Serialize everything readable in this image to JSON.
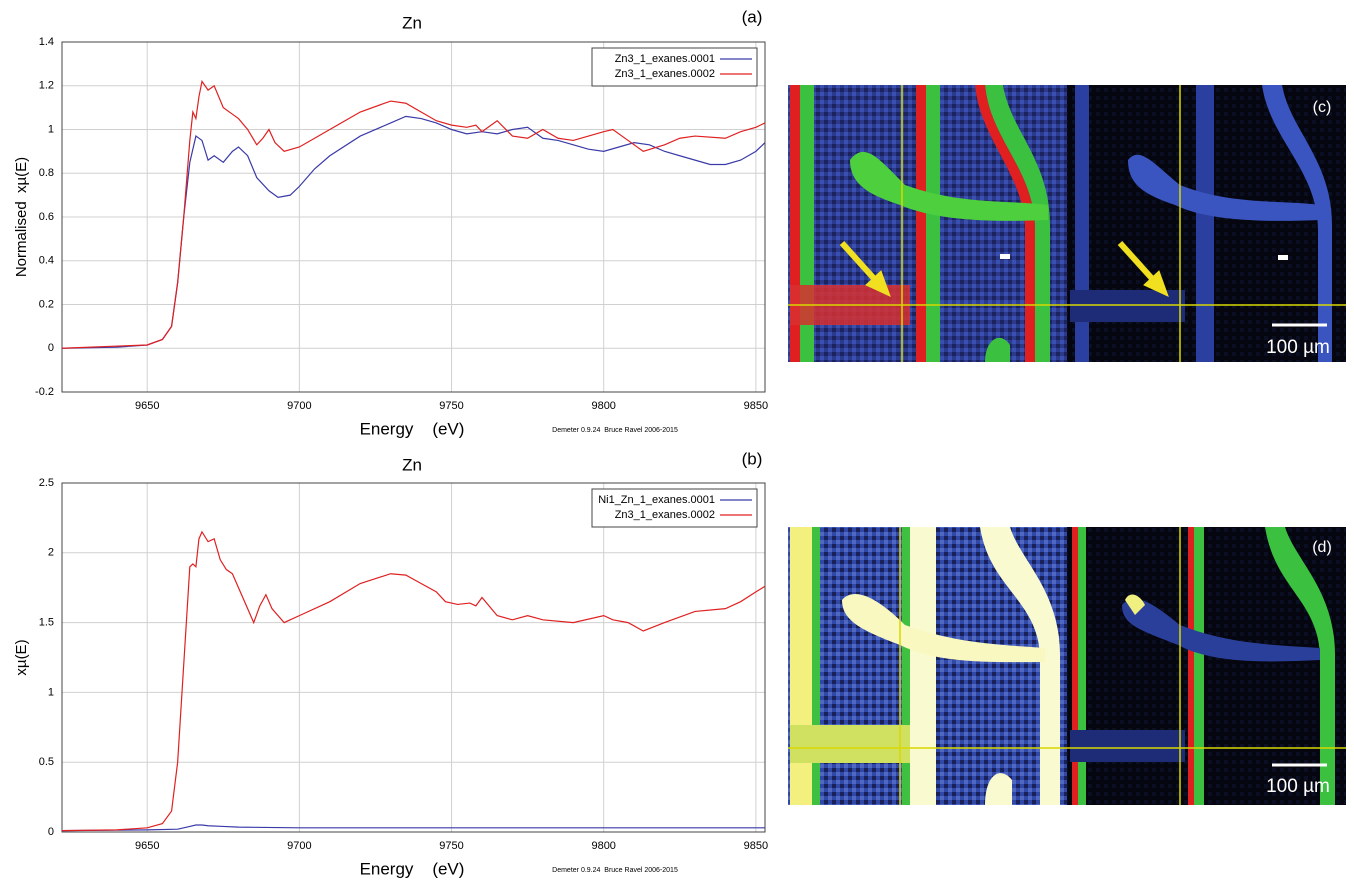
{
  "chart_data": [
    {
      "type": "line",
      "title": "Zn",
      "panel_label": "(a)",
      "x_label": "Energy    (eV)",
      "y_label": "Normalised  xµ(E)",
      "footer": "Demeter 0.9.24  Bruce Ravel 2006-2015",
      "xlim": [
        9622,
        9853
      ],
      "xticks": [
        9650,
        9700,
        9750,
        9800,
        9850
      ],
      "ylim": [
        -0.2,
        1.4
      ],
      "yticks": [
        -0.2,
        0,
        0.2,
        0.4,
        0.6,
        0.8,
        1,
        1.2,
        1.4
      ],
      "grid": true,
      "legend": "upper right",
      "series": [
        {
          "name": "Zn3_1_exanes.0001",
          "color": "#3a3aa8",
          "x": [
            9622,
            9640,
            9650,
            9655,
            9658,
            9660,
            9662,
            9664,
            9666,
            9668,
            9670,
            9672,
            9675,
            9678,
            9680,
            9683,
            9686,
            9690,
            9693,
            9697,
            9700,
            9705,
            9710,
            9720,
            9730,
            9735,
            9740,
            9745,
            9750,
            9755,
            9760,
            9765,
            9770,
            9775,
            9780,
            9785,
            9790,
            9795,
            9800,
            9805,
            9810,
            9815,
            9820,
            9825,
            9830,
            9835,
            9840,
            9845,
            9850,
            9853
          ],
          "values": [
            0,
            0.005,
            0.015,
            0.04,
            0.1,
            0.3,
            0.6,
            0.85,
            0.97,
            0.95,
            0.86,
            0.88,
            0.85,
            0.9,
            0.92,
            0.88,
            0.78,
            0.72,
            0.69,
            0.7,
            0.74,
            0.82,
            0.88,
            0.97,
            1.03,
            1.06,
            1.05,
            1.03,
            1.0,
            0.98,
            0.99,
            0.98,
            1.0,
            1.01,
            0.96,
            0.95,
            0.93,
            0.91,
            0.9,
            0.92,
            0.94,
            0.93,
            0.9,
            0.88,
            0.86,
            0.84,
            0.84,
            0.86,
            0.9,
            0.94
          ]
        },
        {
          "name": "Zn3_1_exanes.0002",
          "color": "#e02020",
          "x": [
            9622,
            9650,
            9655,
            9658,
            9660,
            9662,
            9664,
            9665,
            9666,
            9667,
            9668,
            9670,
            9672,
            9675,
            9678,
            9680,
            9683,
            9686,
            9688,
            9690,
            9692,
            9695,
            9700,
            9710,
            9720,
            9730,
            9735,
            9740,
            9745,
            9750,
            9755,
            9758,
            9760,
            9765,
            9770,
            9775,
            9780,
            9785,
            9790,
            9795,
            9800,
            9803,
            9808,
            9813,
            9820,
            9825,
            9830,
            9840,
            9845,
            9850,
            9853
          ],
          "values": [
            0,
            0.015,
            0.04,
            0.1,
            0.3,
            0.6,
            0.95,
            1.08,
            1.05,
            1.15,
            1.22,
            1.18,
            1.2,
            1.1,
            1.07,
            1.05,
            1.0,
            0.93,
            0.96,
            1.0,
            0.94,
            0.9,
            0.92,
            1.0,
            1.08,
            1.13,
            1.12,
            1.08,
            1.04,
            1.02,
            1.01,
            1.02,
            0.99,
            1.04,
            0.97,
            0.96,
            1.0,
            0.96,
            0.95,
            0.97,
            0.99,
            1.0,
            0.95,
            0.9,
            0.93,
            0.96,
            0.97,
            0.96,
            0.99,
            1.01,
            1.03
          ]
        }
      ]
    },
    {
      "type": "line",
      "title": "Zn",
      "panel_label": "(b)",
      "x_label": "Energy    (eV)",
      "y_label": "xµ(E)",
      "footer": "Demeter 0.9.24  Bruce Ravel 2006-2015",
      "xlim": [
        9622,
        9853
      ],
      "xticks": [
        9650,
        9700,
        9750,
        9800,
        9850
      ],
      "ylim": [
        0,
        2.5
      ],
      "yticks": [
        0,
        0.5,
        1,
        1.5,
        2,
        2.5
      ],
      "grid": true,
      "legend": "upper right",
      "series": [
        {
          "name": "Ni1_Zn_1_exanes.0001",
          "color": "#3a3aa8",
          "x": [
            9622,
            9650,
            9660,
            9664,
            9666,
            9668,
            9670,
            9675,
            9680,
            9700,
            9750,
            9800,
            9853
          ],
          "values": [
            0.01,
            0.015,
            0.02,
            0.04,
            0.05,
            0.05,
            0.045,
            0.04,
            0.035,
            0.03,
            0.03,
            0.03,
            0.03
          ]
        },
        {
          "name": "Zn3_1_exanes.0002",
          "color": "#e02020",
          "x": [
            9622,
            9640,
            9650,
            9655,
            9658,
            9660,
            9662,
            9664,
            9665,
            9666,
            9667,
            9668,
            9670,
            9672,
            9674,
            9676,
            9678,
            9680,
            9683,
            9685,
            9687,
            9689,
            9691,
            9695,
            9700,
            9710,
            9720,
            9730,
            9735,
            9740,
            9745,
            9748,
            9752,
            9756,
            9758,
            9760,
            9765,
            9770,
            9775,
            9780,
            9790,
            9800,
            9803,
            9808,
            9813,
            9820,
            9830,
            9840,
            9845,
            9850,
            9853
          ],
          "values": [
            0.01,
            0.015,
            0.03,
            0.06,
            0.15,
            0.5,
            1.2,
            1.9,
            1.92,
            1.9,
            2.1,
            2.15,
            2.08,
            2.1,
            1.95,
            1.88,
            1.85,
            1.75,
            1.6,
            1.5,
            1.62,
            1.7,
            1.6,
            1.5,
            1.55,
            1.65,
            1.78,
            1.85,
            1.84,
            1.78,
            1.72,
            1.65,
            1.63,
            1.64,
            1.62,
            1.68,
            1.55,
            1.52,
            1.55,
            1.52,
            1.5,
            1.55,
            1.52,
            1.5,
            1.44,
            1.5,
            1.58,
            1.6,
            1.65,
            1.72,
            1.76
          ]
        }
      ]
    }
  ],
  "panels": [
    {
      "label": "(c)",
      "scale_bar": "100 µm"
    },
    {
      "label": "(d)",
      "scale_bar": "100 µm"
    }
  ]
}
